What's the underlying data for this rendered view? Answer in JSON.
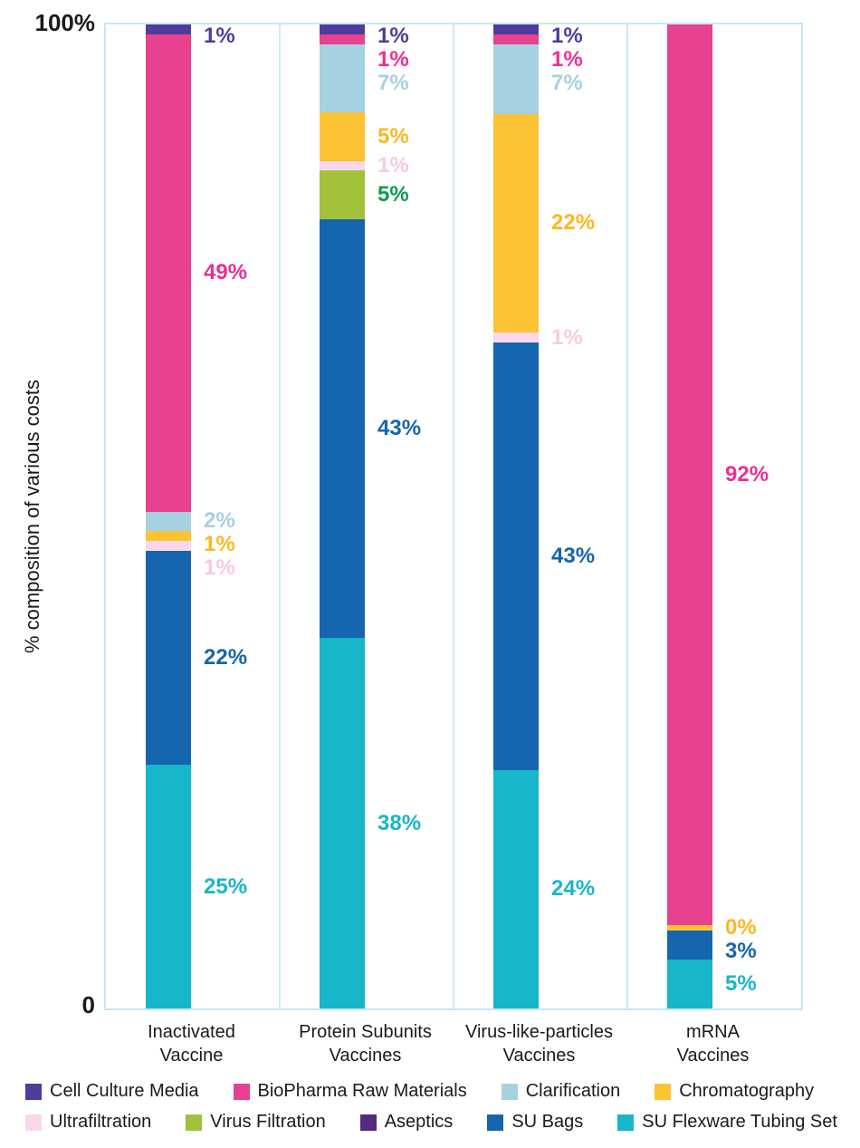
{
  "page": {
    "background": "#ffffff",
    "plot_border_color": "#c6e6f2"
  },
  "chart_data": {
    "type": "bar",
    "stacked": true,
    "title": "",
    "xlabel": "",
    "ylabel": "% composition of various costs",
    "y_axis": {
      "top_tick": "100%",
      "bottom_tick": "0",
      "ylim": [
        0,
        100
      ]
    },
    "grid": "category separators only",
    "legend_position": "bottom",
    "categories": [
      {
        "line1": "Inactivated",
        "line2": "Vaccine"
      },
      {
        "line1": "Protein Subunits",
        "line2": "Vaccines"
      },
      {
        "line1": "Virus-like-particles",
        "line2": "Vaccines"
      },
      {
        "line1": "mRNA",
        "line2": "Vaccines"
      }
    ],
    "legend": [
      {
        "name": "Cell Culture Media",
        "color": "#4d3d9d",
        "label_color": "#4d3d9d"
      },
      {
        "name": "BioPharma Raw Materials",
        "color": "#e8418f",
        "label_color": "#ee2f92"
      },
      {
        "name": "Clarification",
        "color": "#a6d1e0",
        "label_color": "#a6d1e0"
      },
      {
        "name": "Chromatography",
        "color": "#fcc335",
        "label_color": "#fbb81e"
      },
      {
        "name": "Ultrafiltration",
        "color": "#f9d8ec",
        "label_color": "#f7c9e4"
      },
      {
        "name": "Virus Filtration",
        "color": "#a2c13b",
        "label_color": "#0a9b4d"
      },
      {
        "name": "Aseptics",
        "color": "#552a80",
        "label_color": "#552a80"
      },
      {
        "name": "SU Bags",
        "color": "#1565af",
        "label_color": "#1565af"
      },
      {
        "name": "SU Flexware Tubing Set",
        "color": "#17b6cb",
        "label_color": "#17b6cb"
      }
    ],
    "bars": [
      {
        "category": "Inactivated Vaccine",
        "segments": [
          {
            "series": "Cell Culture Media",
            "value": 1,
            "label": "1%"
          },
          {
            "series": "BioPharma Raw Materials",
            "value": 49,
            "label": "49%"
          },
          {
            "series": "Clarification",
            "value": 2,
            "label": "2%"
          },
          {
            "series": "Chromatography",
            "value": 1,
            "label": "1%"
          },
          {
            "series": "Ultrafiltration",
            "value": 1,
            "label": "1%"
          },
          {
            "series": "SU Bags",
            "value": 22,
            "label": "22%"
          },
          {
            "series": "SU Flexware Tubing Set",
            "value": 25,
            "label": "25%"
          }
        ]
      },
      {
        "category": "Protein Subunits Vaccines",
        "segments": [
          {
            "series": "Cell Culture Media",
            "value": 1,
            "label": "1%"
          },
          {
            "series": "BioPharma Raw Materials",
            "value": 1,
            "label": "1%"
          },
          {
            "series": "Clarification",
            "value": 7,
            "label": "7%"
          },
          {
            "series": "Chromatography",
            "value": 5,
            "label": "5%"
          },
          {
            "series": "Ultrafiltration",
            "value": 1,
            "label": "1%"
          },
          {
            "series": "Virus Filtration",
            "value": 5,
            "label": "5%"
          },
          {
            "series": "SU Bags",
            "value": 43,
            "label": "43%"
          },
          {
            "series": "SU Flexware Tubing Set",
            "value": 38,
            "label": "38%"
          }
        ]
      },
      {
        "category": "Virus-like-particles Vaccines",
        "segments": [
          {
            "series": "Cell Culture Media",
            "value": 1,
            "label": "1%"
          },
          {
            "series": "BioPharma Raw Materials",
            "value": 1,
            "label": "1%"
          },
          {
            "series": "Clarification",
            "value": 7,
            "label": "7%"
          },
          {
            "series": "Chromatography",
            "value": 22,
            "label": "22%"
          },
          {
            "series": "Ultrafiltration",
            "value": 1,
            "label": "1%"
          },
          {
            "series": "SU Bags",
            "value": 43,
            "label": "43%"
          },
          {
            "series": "SU Flexware Tubing Set",
            "value": 24,
            "label": "24%"
          }
        ]
      },
      {
        "category": "mRNA Vaccines",
        "segments": [
          {
            "series": "BioPharma Raw Materials",
            "value": 92,
            "label": "92%"
          },
          {
            "series": "Chromatography",
            "value": 0,
            "label": "0%"
          },
          {
            "series": "SU Bags",
            "value": 3,
            "label": "3%"
          },
          {
            "series": "SU Flexware Tubing Set",
            "value": 5,
            "label": "5%"
          }
        ]
      }
    ]
  }
}
